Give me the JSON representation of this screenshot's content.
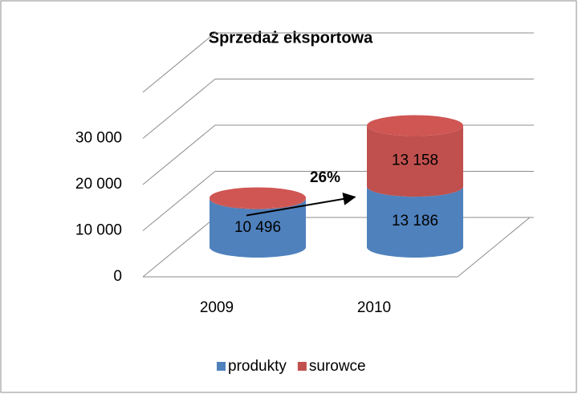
{
  "chart_data": {
    "type": "bar3d-cylinder-stacked",
    "title": "Sprzedaż eksportowa",
    "categories": [
      "2009",
      "2010"
    ],
    "series": [
      {
        "name": "produkty",
        "color": "#4f81bd",
        "values": [
          10496,
          13186
        ],
        "value_labels": [
          "10 496",
          "13 186"
        ]
      },
      {
        "name": "surowce",
        "color": "#c0504d",
        "values": [
          200,
          13158
        ],
        "value_labels": [
          null,
          "13 158"
        ]
      }
    ],
    "ylim": [
      0,
      40000
    ],
    "yticks": [
      0,
      {
        "value": 10000,
        "label": "10 000"
      },
      {
        "value": 20000,
        "label": "20 000"
      },
      {
        "value": 30000,
        "label": "30 000"
      }
    ],
    "annotation": "26%",
    "grid": true,
    "legend": "bottom"
  }
}
